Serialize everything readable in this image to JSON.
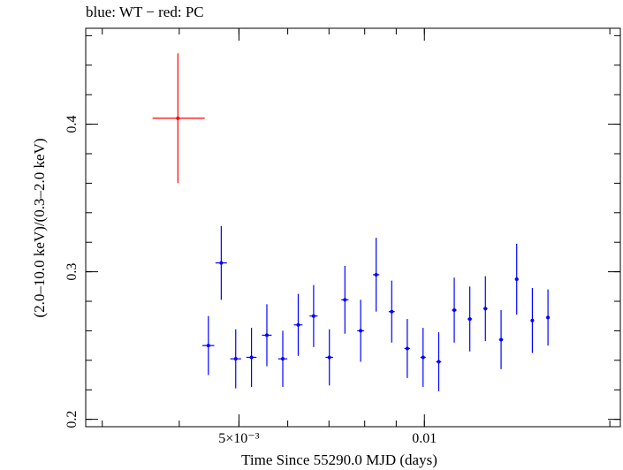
{
  "chart_data": {
    "type": "scatter",
    "title": "blue: WT − red: PC",
    "xlabel": "Time Since 55290.0 MJD (days)",
    "ylabel": "(2.0–10.0 keV)/(0.3–2.0 keV)",
    "xscale": "log",
    "xlim": [
      0.00282,
      0.0208
    ],
    "ylim": [
      0.195,
      0.465
    ],
    "x_ticks": [
      {
        "value": 0.005,
        "label": "5×10⁻³"
      },
      {
        "value": 0.01,
        "label": "0.01"
      }
    ],
    "y_ticks": [
      {
        "value": 0.2,
        "label": "0.2"
      },
      {
        "value": 0.3,
        "label": "0.3"
      },
      {
        "value": 0.4,
        "label": "0.4"
      }
    ],
    "series": [
      {
        "name": "PC",
        "color": "#ff0000",
        "points": [
          {
            "x": 0.00398,
            "xerr_lo": 0.00036,
            "xerr_hi": 0.00042,
            "y": 0.404,
            "yerr": 0.044
          }
        ]
      },
      {
        "name": "WT",
        "color": "#0000ff",
        "points": [
          {
            "x": 0.00446,
            "xerr_lo": 0.0001,
            "xerr_hi": 0.0001,
            "y": 0.25,
            "yerr": 0.02
          },
          {
            "x": 0.00468,
            "xerr_lo": 0.0001,
            "xerr_hi": 0.0001,
            "y": 0.306,
            "yerr": 0.025
          },
          {
            "x": 0.00494,
            "xerr_lo": 0.0001,
            "xerr_hi": 0.0001,
            "y": 0.241,
            "yerr": 0.02
          },
          {
            "x": 0.00524,
            "xerr_lo": 0.0001,
            "xerr_hi": 0.0001,
            "y": 0.242,
            "yerr": 0.02
          },
          {
            "x": 0.00555,
            "xerr_lo": 0.0001,
            "xerr_hi": 0.0001,
            "y": 0.257,
            "yerr": 0.021
          },
          {
            "x": 0.00589,
            "xerr_lo": 0.0001,
            "xerr_hi": 0.0001,
            "y": 0.241,
            "yerr": 0.019
          },
          {
            "x": 0.00624,
            "xerr_lo": 0.0001,
            "xerr_hi": 0.0001,
            "y": 0.264,
            "yerr": 0.021
          },
          {
            "x": 0.00661,
            "xerr_lo": 0.0001,
            "xerr_hi": 0.0001,
            "y": 0.27,
            "yerr": 0.021
          },
          {
            "x": 0.00701,
            "xerr_lo": 0.0001,
            "xerr_hi": 0.0001,
            "y": 0.242,
            "yerr": 0.019
          },
          {
            "x": 0.00743,
            "xerr_lo": 0.0001,
            "xerr_hi": 0.0001,
            "y": 0.281,
            "yerr": 0.023
          },
          {
            "x": 0.00788,
            "xerr_lo": 0.0001,
            "xerr_hi": 0.0001,
            "y": 0.26,
            "yerr": 0.021
          },
          {
            "x": 0.00835,
            "xerr_lo": 0.0001,
            "xerr_hi": 0.0001,
            "y": 0.298,
            "yerr": 0.025
          },
          {
            "x": 0.00885,
            "xerr_lo": 0.0001,
            "xerr_hi": 0.0001,
            "y": 0.273,
            "yerr": 0.021
          },
          {
            "x": 0.00938,
            "xerr_lo": 0.0001,
            "xerr_hi": 0.0001,
            "y": 0.248,
            "yerr": 0.02
          },
          {
            "x": 0.00995,
            "xerr_lo": 0.0001,
            "xerr_hi": 0.0001,
            "y": 0.242,
            "yerr": 0.02
          },
          {
            "x": 0.01055,
            "xerr_lo": 0.0001,
            "xerr_hi": 0.0001,
            "y": 0.239,
            "yerr": 0.02
          },
          {
            "x": 0.01118,
            "xerr_lo": 0.0001,
            "xerr_hi": 0.0001,
            "y": 0.274,
            "yerr": 0.022
          },
          {
            "x": 0.01185,
            "xerr_lo": 0.0001,
            "xerr_hi": 0.0001,
            "y": 0.268,
            "yerr": 0.022
          },
          {
            "x": 0.01256,
            "xerr_lo": 0.0001,
            "xerr_hi": 0.0001,
            "y": 0.275,
            "yerr": 0.022
          },
          {
            "x": 0.01332,
            "xerr_lo": 0.0001,
            "xerr_hi": 0.0001,
            "y": 0.254,
            "yerr": 0.02
          },
          {
            "x": 0.01412,
            "xerr_lo": 0.0001,
            "xerr_hi": 0.0001,
            "y": 0.295,
            "yerr": 0.024
          },
          {
            "x": 0.01497,
            "xerr_lo": 0.0001,
            "xerr_hi": 0.0001,
            "y": 0.267,
            "yerr": 0.022
          },
          {
            "x": 0.01587,
            "xerr_lo": 0.0001,
            "xerr_hi": 0.0001,
            "y": 0.269,
            "yerr": 0.019
          }
        ]
      }
    ],
    "grid": false,
    "legend": "none"
  }
}
